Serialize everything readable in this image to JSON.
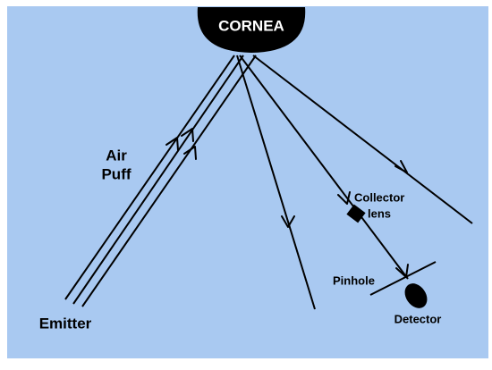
{
  "cornea": {
    "label": "CORNEA"
  },
  "labels": {
    "air_puff": [
      "Air",
      "Puff"
    ],
    "emitter": "Emitter",
    "collector_lens": [
      "Collector",
      "lens"
    ],
    "pinhole": "Pinhole",
    "detector": "Detector"
  }
}
